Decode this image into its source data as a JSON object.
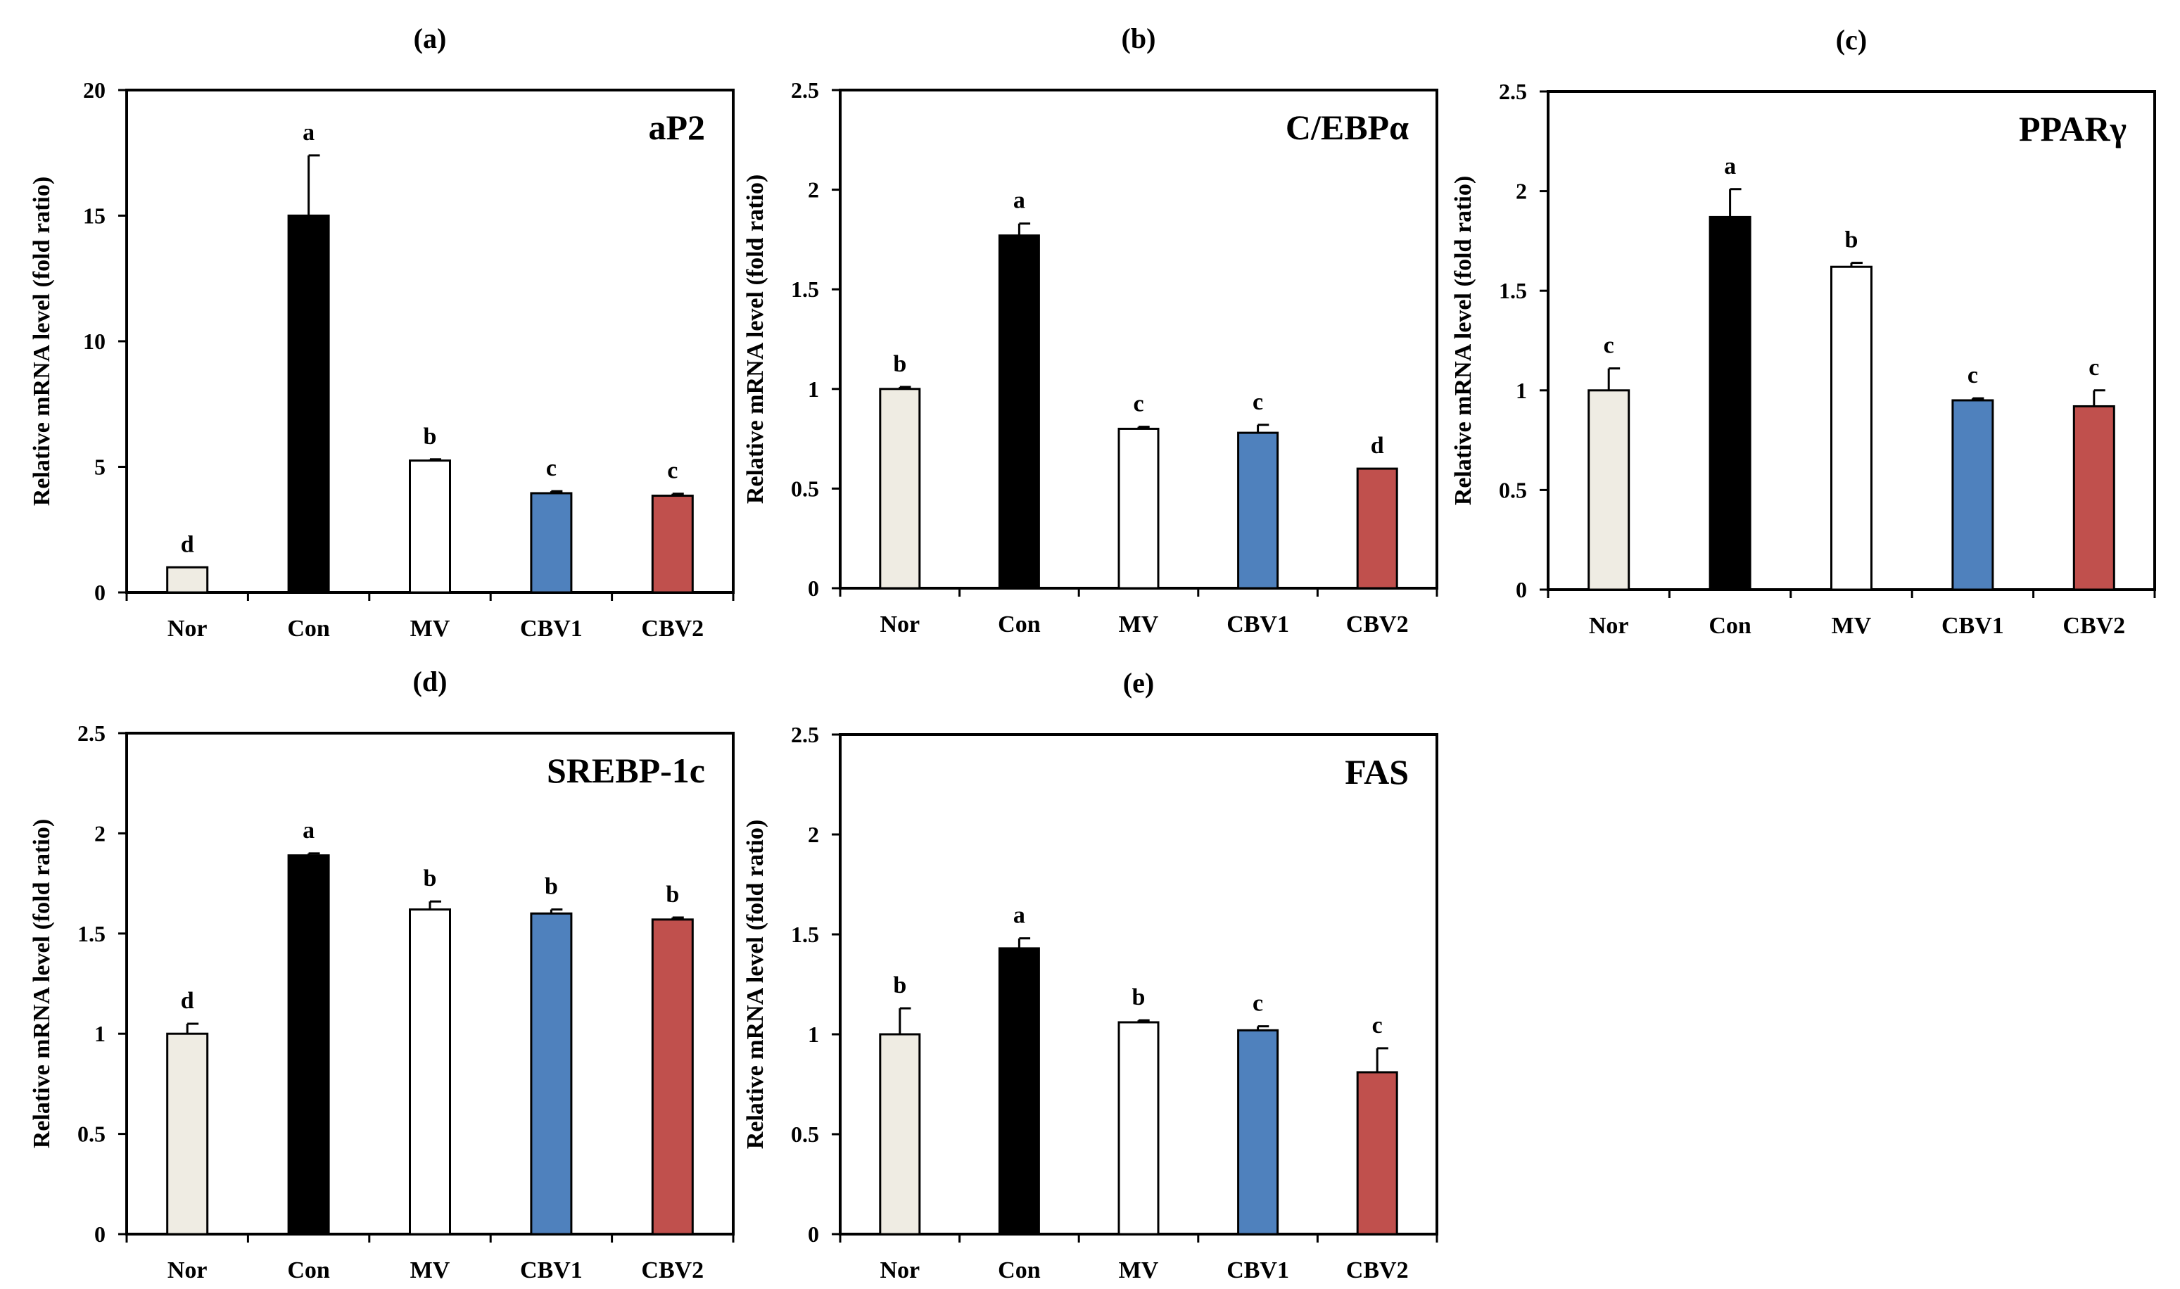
{
  "figure": {
    "panels": [
      {
        "id": "a",
        "panel_label": "(a)",
        "gene": "aP2"
      },
      {
        "id": "b",
        "panel_label": "(b)",
        "gene": "C/EBPα"
      },
      {
        "id": "c",
        "panel_label": "(c)",
        "gene": "PPARγ"
      },
      {
        "id": "d",
        "panel_label": "(d)",
        "gene": "SREBP-1c"
      },
      {
        "id": "e",
        "panel_label": "(e)",
        "gene": "FAS"
      }
    ]
  },
  "chart_data": [
    {
      "type": "bar",
      "panel_label": "(a)",
      "title": "aP2",
      "ylabel": "Relative mRNA level (fold ratio)",
      "categories": [
        "Nor",
        "Con",
        "MV",
        "CBV1",
        "CBV2"
      ],
      "values": [
        1.0,
        15.0,
        5.25,
        3.95,
        3.85
      ],
      "errors": [
        0.0,
        2.4,
        0.05,
        0.08,
        0.08
      ],
      "significance": [
        "d",
        "a",
        "b",
        "c",
        "c"
      ],
      "bar_colors": [
        "#efece3",
        "#000000",
        "#ffffff",
        "#4f81bd",
        "#c0504d"
      ],
      "ylim": [
        0,
        20
      ],
      "yticks": [
        0,
        5,
        10,
        15,
        20
      ],
      "ytick_labels": [
        "0",
        "5",
        "10",
        "15",
        "20"
      ],
      "grid": false
    },
    {
      "type": "bar",
      "panel_label": "(b)",
      "title": "C/EBPα",
      "ylabel": "Relative mRNA level (fold ratio)",
      "categories": [
        "Nor",
        "Con",
        "MV",
        "CBV1",
        "CBV2"
      ],
      "values": [
        1.0,
        1.77,
        0.8,
        0.78,
        0.6
      ],
      "errors": [
        0.01,
        0.06,
        0.01,
        0.04,
        0.0
      ],
      "significance": [
        "b",
        "a",
        "c",
        "c",
        "d"
      ],
      "bar_colors": [
        "#efece3",
        "#000000",
        "#ffffff",
        "#4f81bd",
        "#c0504d"
      ],
      "ylim": [
        0,
        2.5
      ],
      "yticks": [
        0,
        0.5,
        1,
        1.5,
        2,
        2.5
      ],
      "ytick_labels": [
        "0",
        "0.5",
        "1",
        "1.5",
        "2",
        "2.5"
      ],
      "grid": false
    },
    {
      "type": "bar",
      "panel_label": "(c)",
      "title": "PPARγ",
      "ylabel": "Relative mRNA level (fold ratio)",
      "categories": [
        "Nor",
        "Con",
        "MV",
        "CBV1",
        "CBV2"
      ],
      "values": [
        1.0,
        1.87,
        1.62,
        0.95,
        0.92
      ],
      "errors": [
        0.11,
        0.14,
        0.02,
        0.01,
        0.08
      ],
      "significance": [
        "c",
        "a",
        "b",
        "c",
        "c"
      ],
      "bar_colors": [
        "#efece3",
        "#000000",
        "#ffffff",
        "#4f81bd",
        "#c0504d"
      ],
      "ylim": [
        0,
        2.5
      ],
      "yticks": [
        0,
        0.5,
        1,
        1.5,
        2,
        2.5
      ],
      "ytick_labels": [
        "0",
        "0.5",
        "1",
        "1.5",
        "2",
        "2.5"
      ],
      "grid": false
    },
    {
      "type": "bar",
      "panel_label": "(d)",
      "title": "SREBP-1c",
      "ylabel": "Relative mRNA level (fold ratio)",
      "categories": [
        "Nor",
        "Con",
        "MV",
        "CBV1",
        "CBV2"
      ],
      "values": [
        1.0,
        1.89,
        1.62,
        1.6,
        1.57
      ],
      "errors": [
        0.05,
        0.01,
        0.04,
        0.02,
        0.01
      ],
      "significance": [
        "d",
        "a",
        "b",
        "b",
        "b"
      ],
      "bar_colors": [
        "#efece3",
        "#000000",
        "#ffffff",
        "#4f81bd",
        "#c0504d"
      ],
      "ylim": [
        0,
        2.5
      ],
      "yticks": [
        0,
        0.5,
        1,
        1.5,
        2,
        2.5
      ],
      "ytick_labels": [
        "0",
        "0.5",
        "1",
        "1.5",
        "2",
        "2.5"
      ],
      "grid": false
    },
    {
      "type": "bar",
      "panel_label": "(e)",
      "title": "FAS",
      "ylabel": "Relative mRNA level (fold ratio)",
      "categories": [
        "Nor",
        "Con",
        "MV",
        "CBV1",
        "CBV2"
      ],
      "values": [
        1.0,
        1.43,
        1.06,
        1.02,
        0.81
      ],
      "errors": [
        0.13,
        0.05,
        0.01,
        0.02,
        0.12
      ],
      "significance": [
        "b",
        "a",
        "b",
        "c",
        "c"
      ],
      "bar_colors": [
        "#efece3",
        "#000000",
        "#ffffff",
        "#4f81bd",
        "#c0504d"
      ],
      "ylim": [
        0,
        2.5
      ],
      "yticks": [
        0,
        0.5,
        1,
        1.5,
        2,
        2.5
      ],
      "ytick_labels": [
        "0",
        "0.5",
        "1",
        "1.5",
        "2",
        "2.5"
      ],
      "grid": false
    }
  ]
}
